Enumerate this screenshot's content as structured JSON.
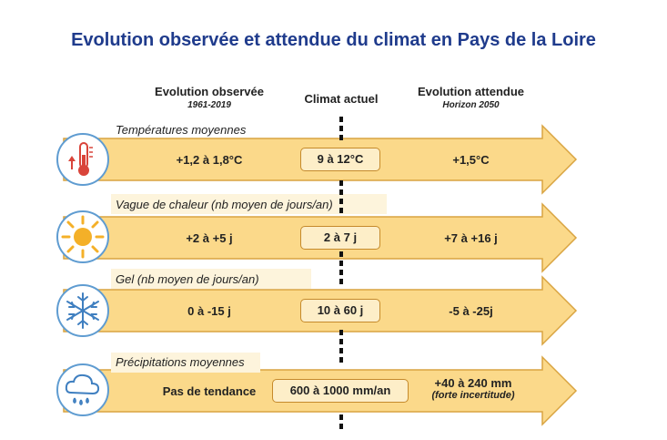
{
  "title": "Evolution observée et attendue du climat en Pays de la Loire",
  "columns": {
    "observed": {
      "label": "Evolution observée",
      "period": "1961-2019"
    },
    "current": {
      "label": "Climat actuel"
    },
    "expected": {
      "label": "Evolution attendue",
      "period": "Horizon 2050"
    }
  },
  "rows": [
    {
      "label": "Températures moyennes",
      "observed": "+1,2 à 1,8°C",
      "current": "9 à 12°C",
      "expected": "+1,5°C",
      "expected_note": "",
      "icon": "thermometer-icon"
    },
    {
      "label": "Vague de chaleur (nb moyen de jours/an)",
      "observed": "+2 à +5 j",
      "current": "2 à 7 j",
      "expected": "+7 à +16 j",
      "expected_note": "",
      "icon": "sun-icon"
    },
    {
      "label": "Gel (nb moyen de jours/an)",
      "observed": "0 à -15 j",
      "current": "10 à 60 j",
      "expected": "-5 à -25j",
      "expected_note": "",
      "icon": "snowflake-icon"
    },
    {
      "label": "Précipitations moyennes",
      "observed": "Pas de tendance",
      "current": "600 à 1000 mm/an",
      "expected": "+40 à 240 mm",
      "expected_note": "(forte incertitude)",
      "icon": "rain-cloud-icon"
    }
  ],
  "colors": {
    "title": "#1f3b8c",
    "arrow_fill": "#fbd98a",
    "arrow_stroke": "#d9a441",
    "icon_ring": "#5f9cd1"
  }
}
